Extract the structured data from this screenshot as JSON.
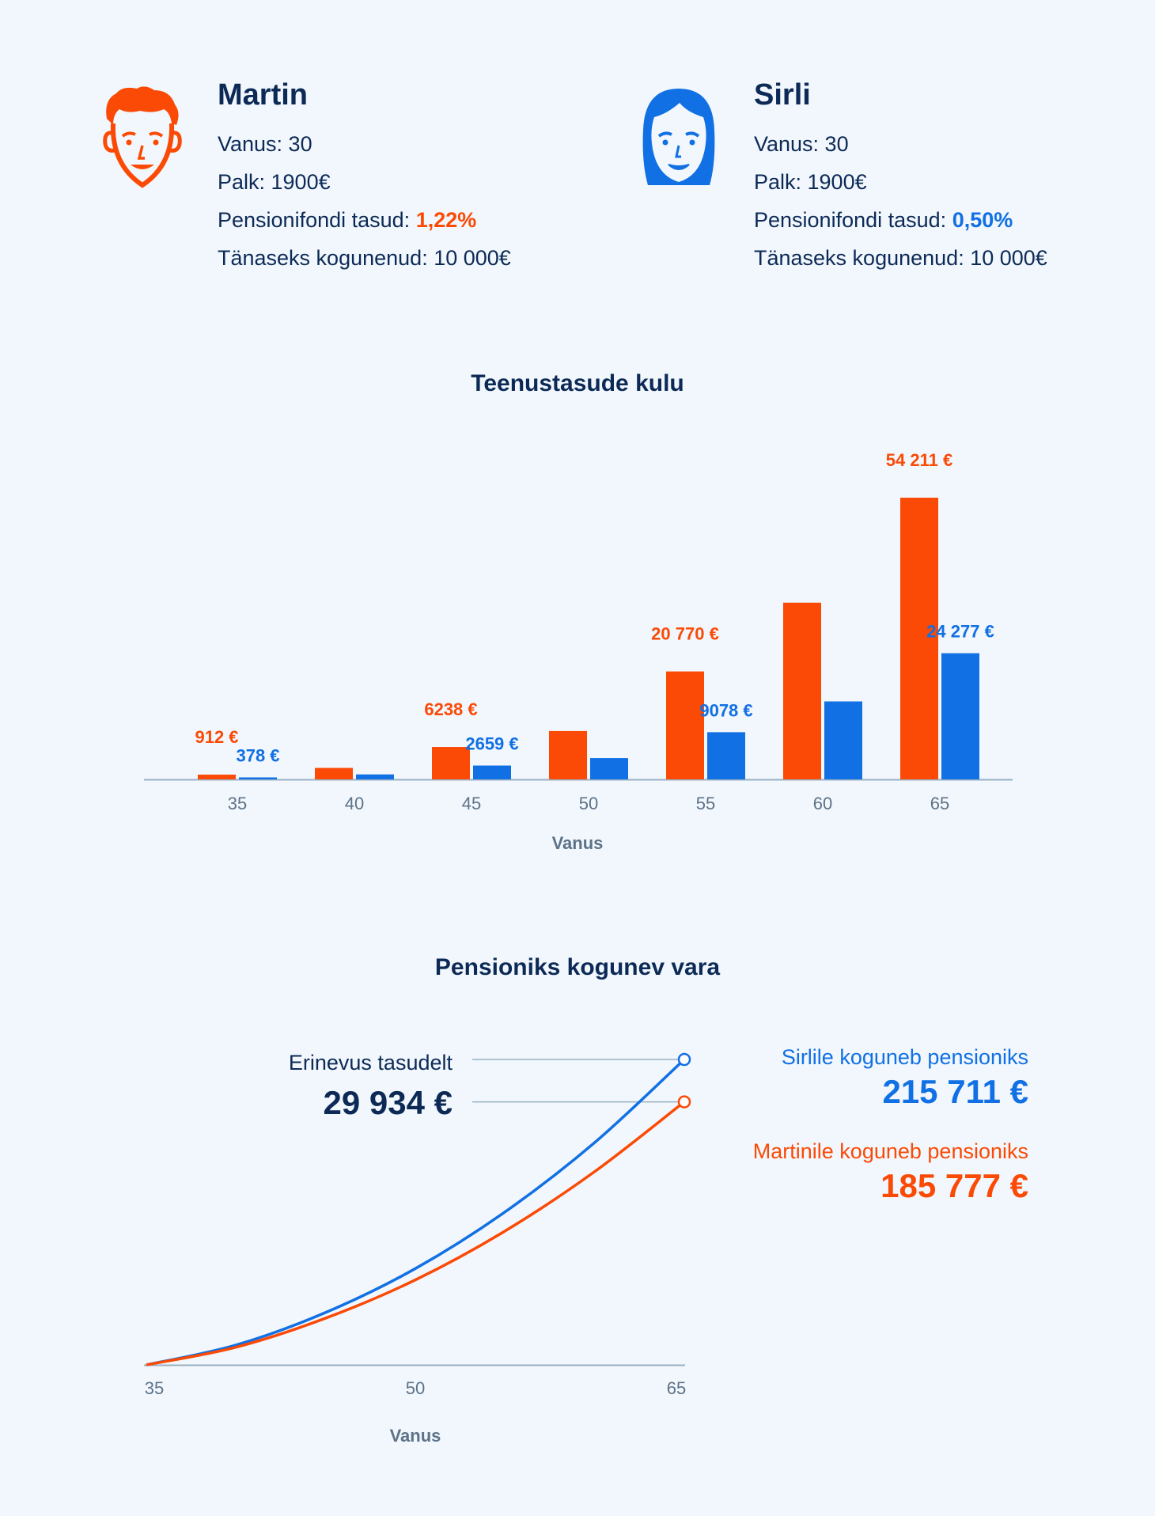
{
  "colors": {
    "martin": "#fb4a06",
    "sirli": "#1170e4",
    "text": "#0d2a57",
    "axis": "#9ab0c4",
    "muted": "#5d7288"
  },
  "people": {
    "martin": {
      "name": "Martin",
      "age_label": "Vanus: 30",
      "salary_label": "Palk: 1900€",
      "fee_prefix": "Pensionifondi tasud: ",
      "fee_value": "1,22%",
      "accumulated_label": "Tänaseks kogunenud: 10 000€",
      "icon": "man-face-icon"
    },
    "sirli": {
      "name": "Sirli",
      "age_label": "Vanus: 30",
      "salary_label": "Palk: 1900€",
      "fee_prefix": "Pensionifondi tasud: ",
      "fee_value": "0,50%",
      "accumulated_label": "Tänaseks kogunenud: 10 000€",
      "icon": "woman-face-icon"
    }
  },
  "chart_data": [
    {
      "type": "bar",
      "title": "Teenustasude kulu",
      "xlabel": "Vanus",
      "ylabel": "",
      "categories": [
        "35",
        "40",
        "45",
        "50",
        "55",
        "60",
        "65"
      ],
      "series": [
        {
          "key": "martin",
          "values": [
            912,
            2200,
            6238,
            9300,
            20770,
            34000,
            54211
          ]
        },
        {
          "key": "sirli",
          "values": [
            378,
            950,
            2659,
            4100,
            9078,
            15000,
            24277
          ]
        }
      ],
      "data_labels": {
        "martin": [
          "912 €",
          "",
          "6238 €",
          "",
          "20 770 €",
          "",
          "54 211 €"
        ],
        "sirli": [
          "378 €",
          "",
          "2659 €",
          "",
          "9078 €",
          "",
          "24 277 €"
        ]
      },
      "ylim": [
        0,
        54211
      ],
      "grid": false,
      "legend": "none"
    },
    {
      "type": "line",
      "title": "Pensioniks kogunev vara",
      "xlabel": "Vanus",
      "ylabel": "",
      "xlim": [
        35,
        65
      ],
      "x_ticks": [
        "35",
        "50",
        "65"
      ],
      "series": [
        {
          "key": "sirli",
          "x": [
            35,
            40,
            45,
            50,
            55,
            60,
            65
          ],
          "y": [
            0,
            14000,
            37000,
            68000,
            108000,
            157000,
            215711
          ]
        },
        {
          "key": "martin",
          "x": [
            35,
            40,
            45,
            50,
            55,
            60,
            65
          ],
          "y": [
            0,
            12500,
            33000,
            60000,
            94500,
            136500,
            185777
          ]
        }
      ],
      "ylim": [
        0,
        215711
      ],
      "grid": false,
      "legend": "right"
    }
  ],
  "difference": {
    "caption": "Erinevus tasudelt",
    "value": "29 934 €"
  },
  "results": {
    "sirli": {
      "caption": "Sirlile koguneb pensioniks",
      "value": "215 711 €"
    },
    "martin": {
      "caption": "Martinile koguneb pensioniks",
      "value": "185 777 €"
    }
  }
}
